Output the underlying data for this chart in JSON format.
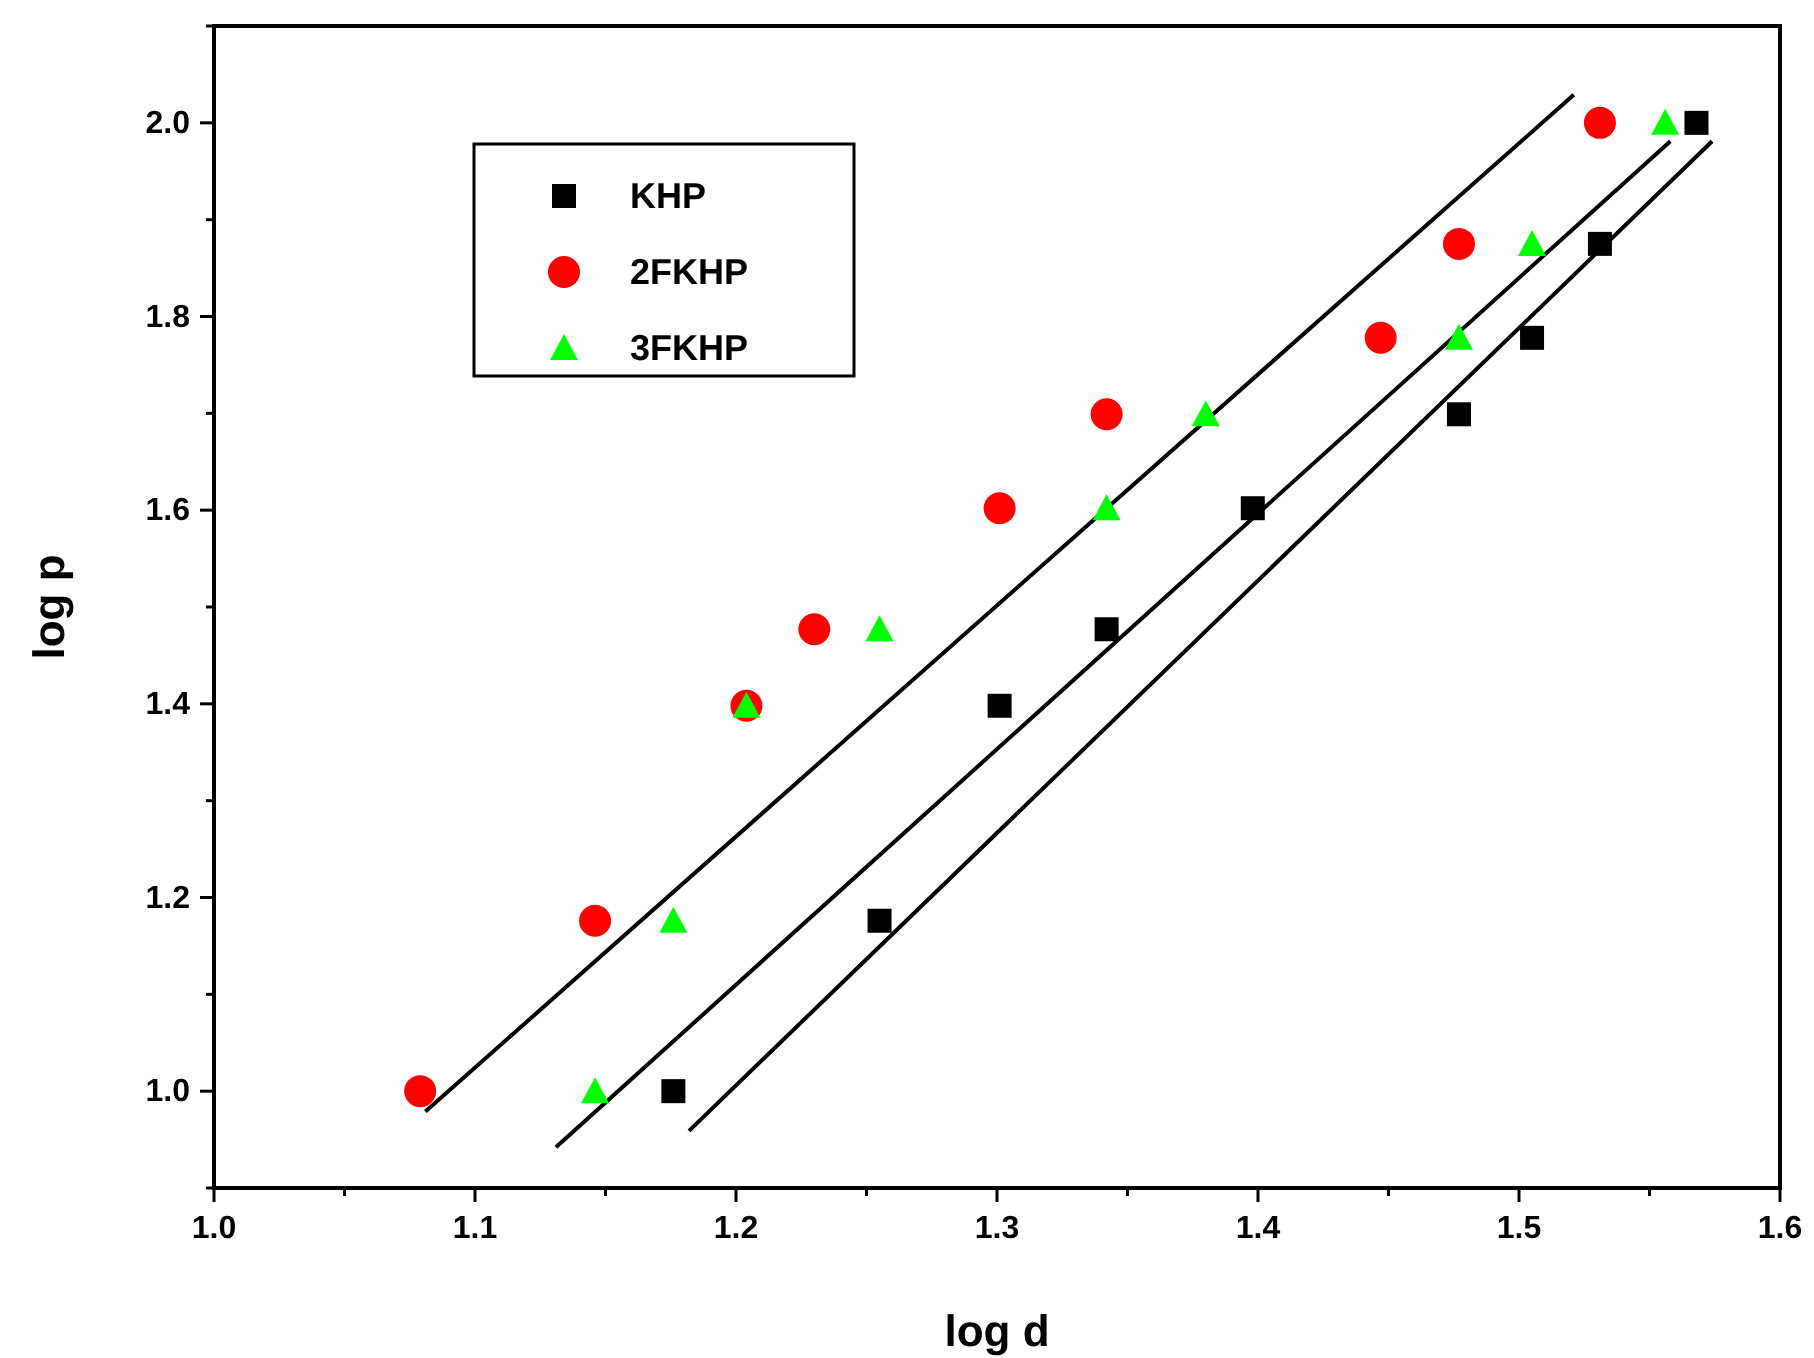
{
  "chart_data": {
    "type": "scatter",
    "xlabel": "log d",
    "ylabel": "log p",
    "xlim": [
      1.0,
      1.6
    ],
    "ylim": [
      0.9,
      2.1
    ],
    "xticks": [
      {
        "value": 1.0,
        "label": "1.0"
      },
      {
        "value": 1.05,
        "label": null
      },
      1.1,
      {
        "value": 1.15,
        "label": null
      },
      1.2,
      {
        "value": 1.25,
        "label": null
      },
      1.3,
      {
        "value": 1.35,
        "label": null
      },
      1.4,
      {
        "value": 1.45,
        "label": null
      },
      1.5,
      {
        "value": 1.55,
        "label": null
      },
      1.6
    ],
    "yticks": [
      {
        "value": 0.9,
        "label": null
      },
      {
        "value": 1.0,
        "label": "1.0"
      },
      {
        "value": 1.1,
        "label": null
      },
      1.2,
      {
        "value": 1.3,
        "label": null
      },
      1.4,
      {
        "value": 1.5,
        "label": null
      },
      1.6,
      {
        "value": 1.7,
        "label": null
      },
      1.8,
      {
        "value": 1.9,
        "label": null
      },
      {
        "value": 2.0,
        "label": "2.0"
      },
      {
        "value": 2.1,
        "label": null
      }
    ],
    "legend": "top left",
    "grid": false,
    "series": [
      {
        "name": "KHP",
        "color": "#000000",
        "marker": "square",
        "x": [
          1.176,
          1.255,
          1.301,
          1.342,
          1.398,
          1.477,
          1.505,
          1.531,
          1.568
        ],
        "values": [
          1.0,
          1.176,
          1.398,
          1.477,
          1.602,
          1.699,
          1.778,
          1.875,
          2.0
        ]
      },
      {
        "name": "2FKHP",
        "color": "#ff0000",
        "marker": "circle",
        "x": [
          1.079,
          1.146,
          1.204,
          1.23,
          1.301,
          1.342,
          1.447,
          1.477,
          1.531
        ],
        "values": [
          1.0,
          1.176,
          1.398,
          1.477,
          1.602,
          1.699,
          1.778,
          1.875,
          2.0
        ]
      },
      {
        "name": "3FKHP",
        "color": "#00ff00",
        "marker": "triangle",
        "x": [
          1.146,
          1.176,
          1.204,
          1.255,
          1.342,
          1.38,
          1.477,
          1.505,
          1.556
        ],
        "values": [
          1.0,
          1.176,
          1.398,
          1.477,
          1.602,
          1.699,
          1.778,
          1.875,
          2.0
        ]
      },
      {
        "type": "line",
        "color": "#000000",
        "x": [
          1.081,
          1.521
        ],
        "values": [
          0.979,
          2.029
        ]
      },
      {
        "type": "line",
        "color": "#000000",
        "x": [
          1.131,
          1.558
        ],
        "values": [
          0.942,
          1.981
        ]
      },
      {
        "type": "line",
        "color": "#000000",
        "x": [
          1.182,
          1.574
        ],
        "values": [
          0.959,
          1.981
        ]
      }
    ]
  }
}
